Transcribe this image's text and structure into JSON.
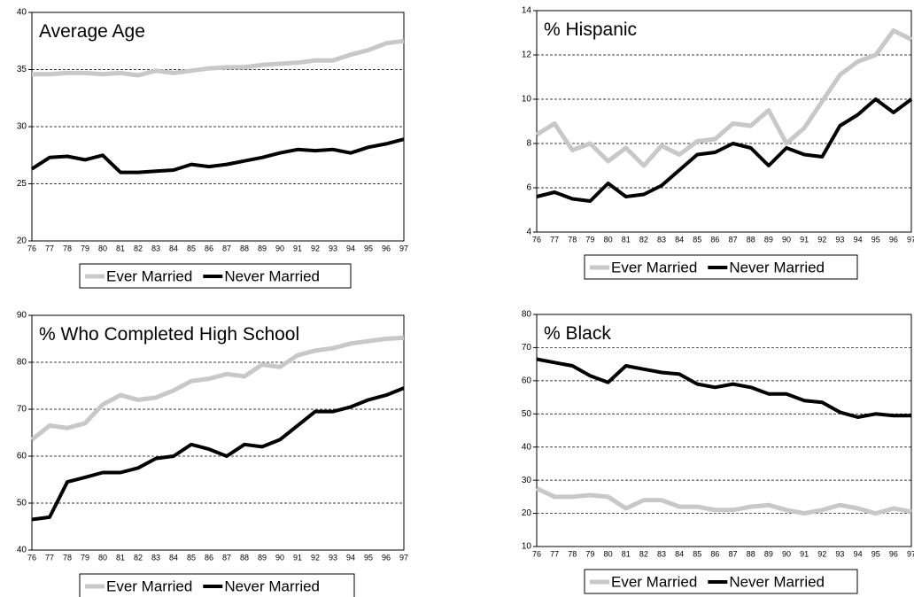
{
  "chart_data": [
    {
      "type": "line",
      "title": "Average Age",
      "categories": [
        "76",
        "77",
        "78",
        "79",
        "80",
        "81",
        "82",
        "83",
        "84",
        "85",
        "86",
        "87",
        "88",
        "89",
        "90",
        "91",
        "92",
        "93",
        "94",
        "95",
        "96",
        "97"
      ],
      "series": [
        {
          "name": "Ever Married",
          "color": "#c8c8c8",
          "values": [
            34.6,
            34.6,
            34.7,
            34.7,
            34.6,
            34.7,
            34.5,
            34.9,
            34.7,
            34.9,
            35.1,
            35.2,
            35.2,
            35.4,
            35.5,
            35.6,
            35.8,
            35.8,
            36.3,
            36.7,
            37.3,
            37.5
          ]
        },
        {
          "name": "Never Married",
          "color": "#000000",
          "values": [
            26.3,
            27.3,
            27.4,
            27.1,
            27.5,
            26.0,
            26.0,
            26.1,
            26.2,
            26.7,
            26.5,
            26.7,
            27.0,
            27.3,
            27.7,
            28.0,
            27.9,
            28.0,
            27.7,
            28.2,
            28.5,
            28.9
          ]
        }
      ],
      "ylim": [
        20,
        40
      ],
      "yticks": [
        20,
        25,
        30,
        35,
        40
      ],
      "grid": true,
      "legend": "bottom"
    },
    {
      "type": "line",
      "title": "% Hispanic",
      "categories": [
        "76",
        "77",
        "78",
        "79",
        "80",
        "81",
        "82",
        "83",
        "84",
        "85",
        "86",
        "87",
        "88",
        "89",
        "90",
        "91",
        "92",
        "93",
        "94",
        "95",
        "96",
        "97"
      ],
      "series": [
        {
          "name": "Ever Married",
          "color": "#c8c8c8",
          "values": [
            8.4,
            8.9,
            7.7,
            8.0,
            7.2,
            7.8,
            7.0,
            7.9,
            7.5,
            8.1,
            8.2,
            8.9,
            8.8,
            9.5,
            8.0,
            8.7,
            9.9,
            11.1,
            11.7,
            12.0,
            13.1,
            12.7
          ]
        },
        {
          "name": "Never Married",
          "color": "#000000",
          "values": [
            5.6,
            5.8,
            5.5,
            5.4,
            6.2,
            5.6,
            5.7,
            6.1,
            6.8,
            7.5,
            7.6,
            8.0,
            7.8,
            7.0,
            7.8,
            7.5,
            7.4,
            8.8,
            9.3,
            10.0,
            9.4,
            10.0
          ]
        }
      ],
      "ylim": [
        4,
        14
      ],
      "yticks": [
        4,
        6,
        8,
        10,
        12,
        14
      ],
      "grid": true,
      "legend": "bottom"
    },
    {
      "type": "line",
      "title": "% Who Completed High School",
      "categories": [
        "76",
        "77",
        "78",
        "79",
        "80",
        "81",
        "82",
        "83",
        "84",
        "85",
        "86",
        "87",
        "88",
        "89",
        "90",
        "91",
        "92",
        "93",
        "94",
        "95",
        "96",
        "97"
      ],
      "series": [
        {
          "name": "Ever Married",
          "color": "#c8c8c8",
          "values": [
            63.5,
            66.5,
            66,
            67,
            71,
            73,
            72,
            72.5,
            74,
            76,
            76.5,
            77.5,
            77,
            79.5,
            79,
            81.5,
            82.5,
            83,
            84,
            84.5,
            85,
            85.2
          ]
        },
        {
          "name": "Never Married",
          "color": "#000000",
          "values": [
            46.5,
            47,
            54.5,
            55.5,
            56.5,
            56.5,
            57.5,
            59.5,
            60,
            62.5,
            61.5,
            60,
            62.5,
            62,
            63.5,
            66.5,
            69.5,
            69.5,
            70.5,
            72,
            73,
            74.5
          ]
        }
      ],
      "ylim": [
        40,
        90
      ],
      "yticks": [
        40,
        50,
        60,
        70,
        80,
        90
      ],
      "grid": true,
      "legend": "bottom"
    },
    {
      "type": "line",
      "title": "% Black",
      "categories": [
        "76",
        "77",
        "78",
        "79",
        "80",
        "81",
        "82",
        "83",
        "84",
        "85",
        "86",
        "87",
        "88",
        "89",
        "90",
        "91",
        "92",
        "93",
        "94",
        "95",
        "96",
        "97"
      ],
      "series": [
        {
          "name": "Ever Married",
          "color": "#c8c8c8",
          "values": [
            27.5,
            25,
            25,
            25.5,
            25,
            21.5,
            24,
            24,
            22,
            22,
            21,
            21,
            22,
            22.5,
            21,
            20,
            21,
            22.5,
            21.5,
            20,
            21.5,
            20.5
          ]
        },
        {
          "name": "Never Married",
          "color": "#000000",
          "values": [
            66.5,
            65.5,
            64.5,
            61.5,
            59.5,
            64.5,
            63.5,
            62.5,
            62,
            59,
            58,
            59,
            58,
            56,
            56,
            54,
            53.5,
            50.5,
            49,
            50,
            49.5,
            49.5
          ]
        }
      ],
      "ylim": [
        10,
        80
      ],
      "yticks": [
        10,
        20,
        30,
        40,
        50,
        60,
        70,
        80
      ],
      "grid": true,
      "legend": "bottom"
    }
  ]
}
